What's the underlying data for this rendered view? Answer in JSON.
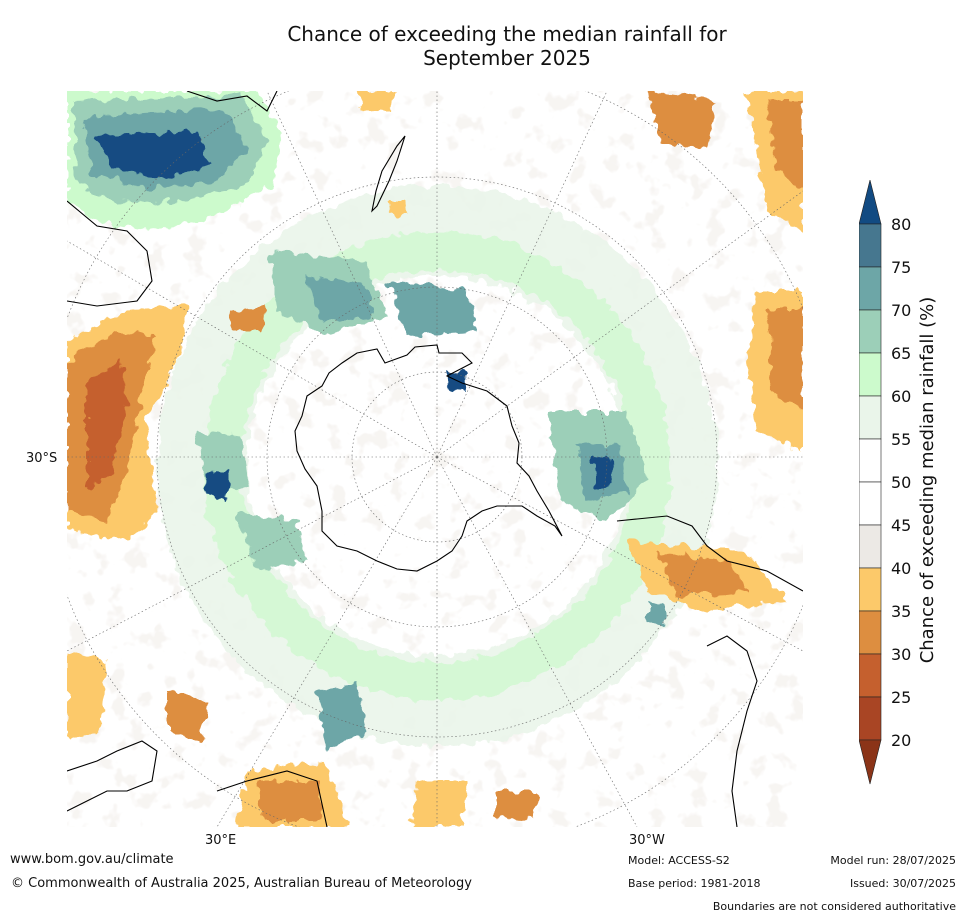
{
  "title": {
    "line1": "Chance of exceeding the median rainfall for",
    "line2": "September 2025"
  },
  "map": {
    "projection": "south-polar-stereographic",
    "graticule": {
      "lat_label": "30°S",
      "lon_labels": [
        "30°E",
        "30°W"
      ]
    }
  },
  "colorbar": {
    "label": "Chance of exceeding median rainfall (%)",
    "ticks": [
      "20",
      "25",
      "30",
      "35",
      "40",
      "45",
      "50",
      "55",
      "60",
      "65",
      "70",
      "75",
      "80"
    ],
    "colors": [
      "#8b3418",
      "#a94524",
      "#c5602e",
      "#dd8e40",
      "#fcc96a",
      "#ece9e5",
      "#ffffff",
      "#ffffff",
      "#eaf5ea",
      "#ccfacc",
      "#9ccfb8",
      "#6da6a7",
      "#46778f",
      "#124b82"
    ]
  },
  "footer": {
    "url": "www.bom.gov.au/climate",
    "copyright": "© Commonwealth of Australia 2025, Australian Bureau of Meteorology",
    "model": "Model: ACCESS-S2",
    "base_period": "Base period: 1981-2018",
    "model_run": "Model run: 28/07/2025",
    "issued": "Issued: 30/07/2025",
    "disclaimer": "Boundaries are not considered authoritative"
  }
}
